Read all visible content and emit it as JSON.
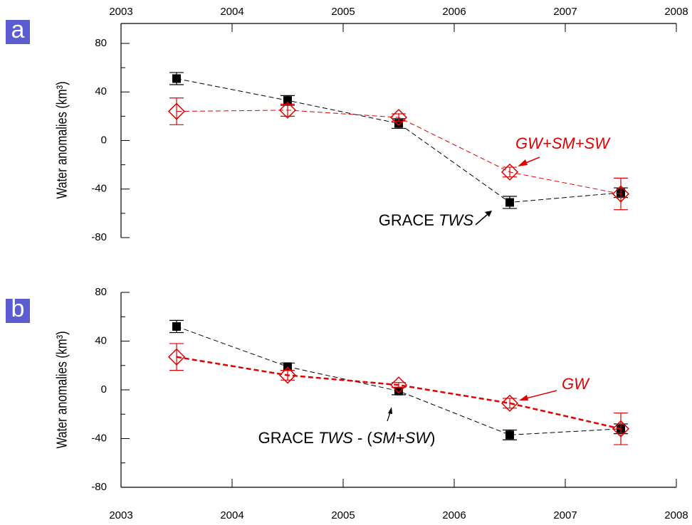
{
  "chart_data": [
    {
      "type": "scatter",
      "panel_label": "a",
      "y_label": "Water anomalies (km³)",
      "x": [
        2003.5,
        2004.5,
        2005.5,
        2006.5,
        2007.5
      ],
      "xlim": [
        2003,
        2008
      ],
      "xticks": [
        2003,
        2004,
        2005,
        2006,
        2007,
        2008
      ],
      "xaxis_position": "top",
      "ylim": [
        -80,
        80
      ],
      "yticks": [
        -80,
        -40,
        0,
        40,
        80
      ],
      "minor_yticks": [
        -60,
        -20,
        20,
        60
      ],
      "series": [
        {
          "color": "#000000",
          "marker": "square",
          "line_width": 1,
          "values": [
            51,
            33,
            14,
            -51,
            -43
          ],
          "errors": [
            5,
            4,
            4,
            5,
            4
          ]
        },
        {
          "color": "#e00000",
          "marker": "diamond",
          "line_width": 1,
          "values": [
            24,
            25,
            19,
            -26,
            -44
          ],
          "errors": [
            11,
            5,
            3,
            4,
            13
          ]
        }
      ],
      "annotations": [
        {
          "text": [
            "GW+SM+SW"
          ]
        },
        {
          "text": [
            "GRACE ",
            "TWS"
          ]
        }
      ]
    },
    {
      "type": "scatter",
      "panel_label": "b",
      "y_label": "Water anomalies (km³)",
      "x": [
        2003.5,
        2004.5,
        2005.5,
        2006.5,
        2007.5
      ],
      "xlim": [
        2003,
        2008
      ],
      "xticks": [
        2003,
        2004,
        2005,
        2006,
        2007,
        2008
      ],
      "xaxis_position": "bottom",
      "ylim": [
        -80,
        80
      ],
      "yticks": [
        -80,
        -40,
        0,
        40,
        80
      ],
      "minor_yticks": [
        -60,
        -20,
        20,
        60
      ],
      "series": [
        {
          "color": "#000000",
          "marker": "square",
          "line_width": 1,
          "values": [
            52,
            19,
            -1,
            -37,
            -32
          ],
          "errors": [
            5,
            3,
            3,
            4,
            4
          ]
        },
        {
          "color": "#e00000",
          "marker": "diamond",
          "line_width": 2.5,
          "values": [
            27,
            12,
            4,
            -11,
            -32
          ],
          "errors": [
            11,
            4,
            2,
            4,
            13
          ]
        }
      ],
      "annotations": [
        {
          "text": [
            "GRACE ",
            "TWS",
            " - (",
            "SM",
            "+",
            "SW",
            ")"
          ]
        },
        {
          "text": [
            "GW"
          ]
        }
      ]
    }
  ]
}
